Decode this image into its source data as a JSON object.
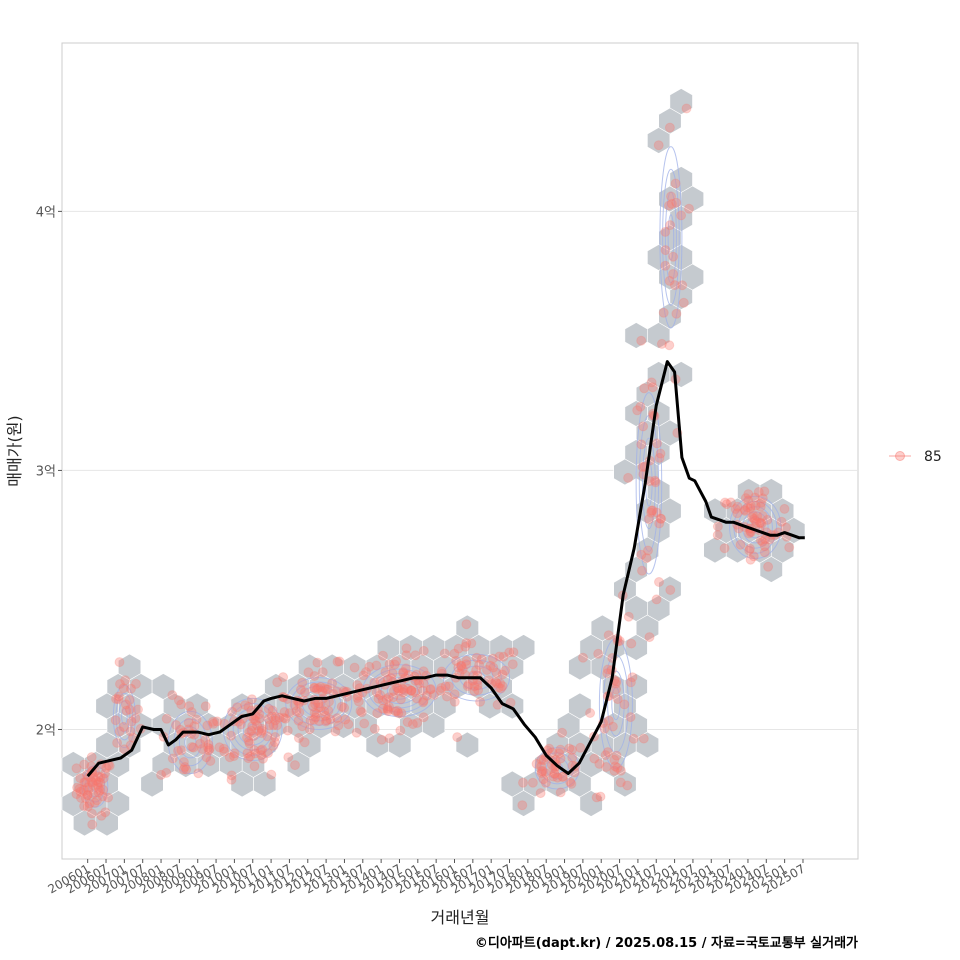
{
  "chart_data": {
    "type": "scatter",
    "title": "",
    "xlabel": "거래년월",
    "ylabel": "매매가(원)",
    "caption": "©디아파트(dapt.kr) / 2025.08.15 / 자료=국토교통부 실거래가",
    "legend": {
      "position": "right",
      "entries": [
        {
          "label": "85",
          "color": "#f8766d"
        }
      ]
    },
    "x_range": [
      2005.3,
      2027.0
    ],
    "ylim": [
      1.5,
      4.65
    ],
    "y_ticks": [
      {
        "value": 2,
        "label": "2억"
      },
      {
        "value": 3,
        "label": "3억"
      },
      {
        "value": 4,
        "label": "4억"
      }
    ],
    "x_ticks": [
      {
        "value": 2006.0,
        "label": "200601"
      },
      {
        "value": 2006.5,
        "label": "200607"
      },
      {
        "value": 2007.0,
        "label": "200701"
      },
      {
        "value": 2007.5,
        "label": "200707"
      },
      {
        "value": 2008.0,
        "label": "200801"
      },
      {
        "value": 2008.5,
        "label": "200807"
      },
      {
        "value": 2009.0,
        "label": "200901"
      },
      {
        "value": 2009.5,
        "label": "200907"
      },
      {
        "value": 2010.0,
        "label": "201001"
      },
      {
        "value": 2010.5,
        "label": "201007"
      },
      {
        "value": 2011.0,
        "label": "201101"
      },
      {
        "value": 2011.5,
        "label": "201107"
      },
      {
        "value": 2012.0,
        "label": "201201"
      },
      {
        "value": 2012.5,
        "label": "201207"
      },
      {
        "value": 2013.0,
        "label": "201301"
      },
      {
        "value": 2013.5,
        "label": "201307"
      },
      {
        "value": 2014.0,
        "label": "201401"
      },
      {
        "value": 2014.5,
        "label": "201407"
      },
      {
        "value": 2015.0,
        "label": "201501"
      },
      {
        "value": 2015.5,
        "label": "201507"
      },
      {
        "value": 2016.0,
        "label": "201601"
      },
      {
        "value": 2016.5,
        "label": "201607"
      },
      {
        "value": 2017.0,
        "label": "201701"
      },
      {
        "value": 2017.5,
        "label": "201707"
      },
      {
        "value": 2018.0,
        "label": "201801"
      },
      {
        "value": 2018.5,
        "label": "201807"
      },
      {
        "value": 2019.0,
        "label": "201901"
      },
      {
        "value": 2019.5,
        "label": "201907"
      },
      {
        "value": 2020.0,
        "label": "202001"
      },
      {
        "value": 2020.5,
        "label": "202007"
      },
      {
        "value": 2021.0,
        "label": "202101"
      },
      {
        "value": 2021.5,
        "label": "202107"
      },
      {
        "value": 2022.0,
        "label": "202201"
      },
      {
        "value": 2022.5,
        "label": "202207"
      },
      {
        "value": 2023.0,
        "label": "202301"
      },
      {
        "value": 2023.5,
        "label": "202307"
      },
      {
        "value": 2024.0,
        "label": "202401"
      },
      {
        "value": 2024.5,
        "label": "202407"
      },
      {
        "value": 2025.0,
        "label": "202501"
      },
      {
        "value": 2025.5,
        "label": "202507"
      }
    ],
    "trend_line": {
      "name": "moving-average",
      "color": "#000000",
      "x": [
        2006.0,
        2006.3,
        2006.6,
        2006.9,
        2007.2,
        2007.5,
        2007.8,
        2008.0,
        2008.2,
        2008.4,
        2008.6,
        2008.8,
        2009.0,
        2009.3,
        2009.6,
        2009.9,
        2010.2,
        2010.5,
        2010.8,
        2011.0,
        2011.3,
        2011.6,
        2011.9,
        2012.2,
        2012.5,
        2012.8,
        2013.1,
        2013.4,
        2013.7,
        2014.0,
        2014.3,
        2014.6,
        2014.9,
        2015.2,
        2015.5,
        2015.8,
        2016.1,
        2016.4,
        2016.7,
        2017.0,
        2017.3,
        2017.6,
        2017.9,
        2018.2,
        2018.5,
        2018.8,
        2019.1,
        2019.4,
        2019.7,
        2020.0,
        2020.3,
        2020.6,
        2020.9,
        2021.2,
        2021.5,
        2021.8,
        2022.0,
        2022.2,
        2022.4,
        2022.55,
        2022.7,
        2022.85,
        2023.0,
        2023.2,
        2023.4,
        2023.6,
        2023.8,
        2024.0,
        2024.2,
        2024.4,
        2024.6,
        2024.8,
        2025.0,
        2025.2,
        2025.4,
        2025.55
      ],
      "y": [
        1.82,
        1.87,
        1.88,
        1.89,
        1.92,
        2.01,
        2.0,
        2.0,
        1.94,
        1.96,
        1.99,
        1.99,
        1.99,
        1.98,
        1.99,
        2.02,
        2.05,
        2.06,
        2.11,
        2.12,
        2.13,
        2.12,
        2.11,
        2.12,
        2.12,
        2.13,
        2.14,
        2.15,
        2.16,
        2.17,
        2.18,
        2.19,
        2.2,
        2.2,
        2.21,
        2.21,
        2.2,
        2.2,
        2.2,
        2.16,
        2.1,
        2.08,
        2.02,
        1.97,
        1.9,
        1.86,
        1.83,
        1.87,
        1.95,
        2.03,
        2.2,
        2.52,
        2.7,
        2.95,
        3.25,
        3.42,
        3.38,
        3.05,
        2.97,
        2.96,
        2.92,
        2.88,
        2.82,
        2.81,
        2.8,
        2.8,
        2.79,
        2.78,
        2.77,
        2.76,
        2.75,
        2.75,
        2.76,
        2.75,
        2.74,
        2.74
      ]
    },
    "hex_clusters": [
      {
        "x": 2006.2,
        "y": 1.78,
        "n": 55,
        "sx": 0.35,
        "sy": 0.08
      },
      {
        "x": 2007.0,
        "y": 2.05,
        "n": 25,
        "sx": 0.3,
        "sy": 0.12
      },
      {
        "x": 2008.8,
        "y": 1.95,
        "n": 40,
        "sx": 0.6,
        "sy": 0.12
      },
      {
        "x": 2010.5,
        "y": 2.0,
        "n": 70,
        "sx": 0.8,
        "sy": 0.12
      },
      {
        "x": 2012.3,
        "y": 2.1,
        "n": 80,
        "sx": 0.9,
        "sy": 0.1
      },
      {
        "x": 2014.5,
        "y": 2.15,
        "n": 90,
        "sx": 1.0,
        "sy": 0.1
      },
      {
        "x": 2016.6,
        "y": 2.2,
        "n": 60,
        "sx": 0.9,
        "sy": 0.09
      },
      {
        "x": 2018.8,
        "y": 1.85,
        "n": 45,
        "sx": 0.6,
        "sy": 0.08
      },
      {
        "x": 2020.4,
        "y": 2.1,
        "n": 45,
        "sx": 0.45,
        "sy": 0.25
      },
      {
        "x": 2021.3,
        "y": 2.95,
        "n": 40,
        "sx": 0.35,
        "sy": 0.35
      },
      {
        "x": 2021.9,
        "y": 3.9,
        "n": 25,
        "sx": 0.3,
        "sy": 0.35
      },
      {
        "x": 2024.2,
        "y": 2.78,
        "n": 65,
        "sx": 0.7,
        "sy": 0.12
      }
    ]
  }
}
